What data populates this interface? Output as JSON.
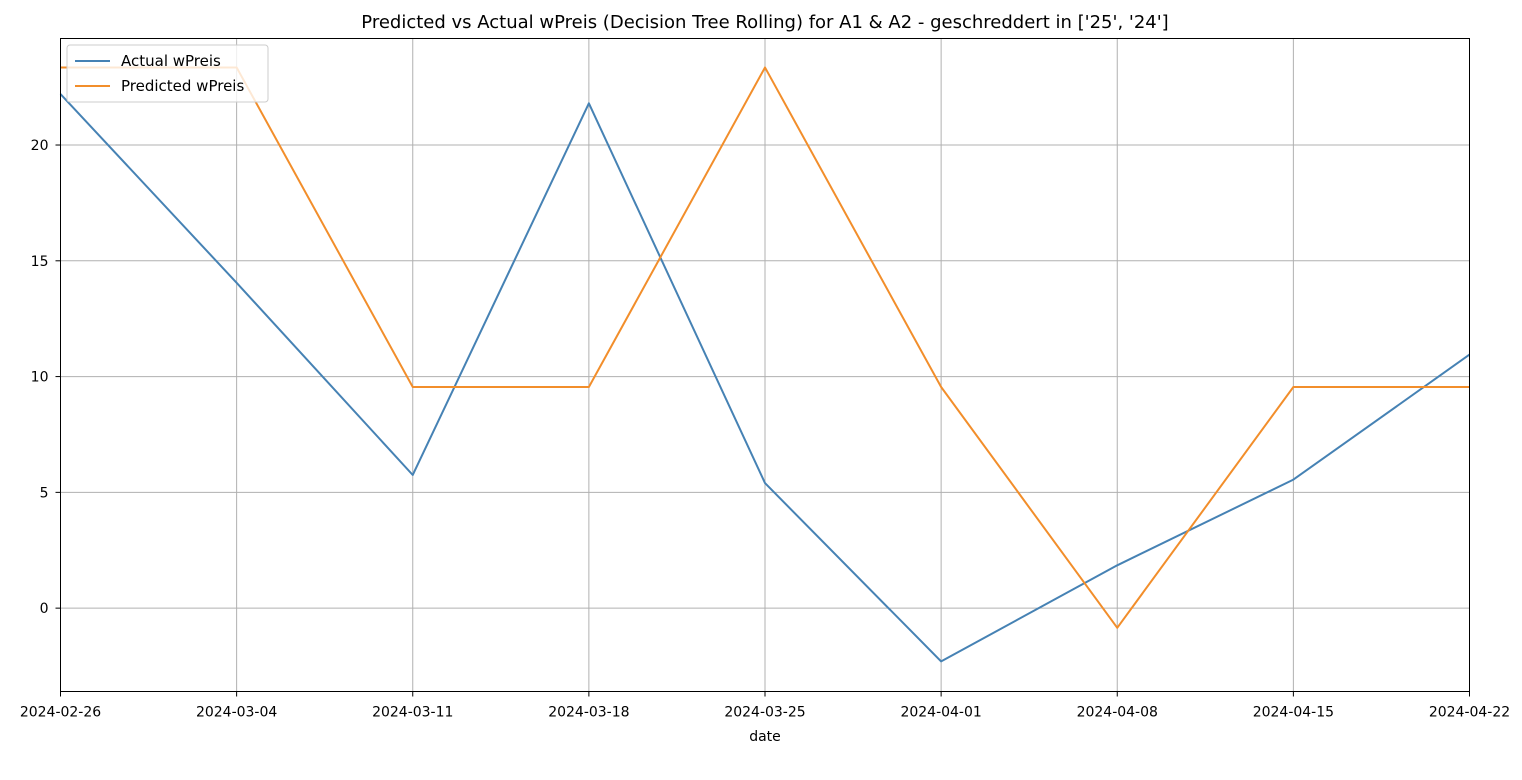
{
  "chart_data": {
    "type": "line",
    "title": "Predicted vs Actual wPreis (Decision Tree Rolling) for A1 & A2 -  geschreddert in ['25', '24']",
    "xlabel": "date",
    "ylabel": "",
    "x": [
      "2024-02-26",
      "2024-03-04",
      "2024-03-11",
      "2024-03-18",
      "2024-03-25",
      "2024-04-01",
      "2024-04-08",
      "2024-04-15",
      "2024-04-22"
    ],
    "x_ticks": [
      "2024-02-26",
      "2024-03-04",
      "2024-03-11",
      "2024-03-18",
      "2024-03-25",
      "2024-04-01",
      "2024-04-08",
      "2024-04-15",
      "2024-04-22"
    ],
    "y_ticks": [
      0,
      5,
      10,
      15,
      20
    ],
    "ylim": [
      -3.6,
      24.6
    ],
    "grid": true,
    "legend_position": "upper-left",
    "series": [
      {
        "name": "Actual wPreis",
        "color": "#4682b4",
        "values": [
          22.2,
          14.05,
          5.75,
          21.8,
          5.4,
          -2.3,
          1.85,
          5.55,
          10.95
        ]
      },
      {
        "name": "Predicted wPreis",
        "color": "#f28e2b",
        "values": [
          23.35,
          23.35,
          9.55,
          9.55,
          23.35,
          9.55,
          -0.85,
          9.55,
          9.55
        ]
      }
    ]
  }
}
